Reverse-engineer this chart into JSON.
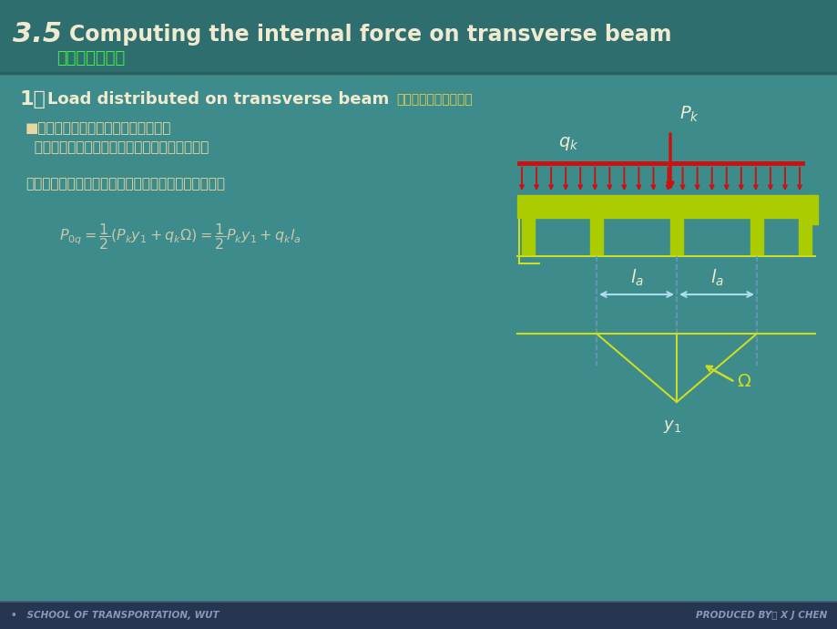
{
  "bg_color": "#3d8b8b",
  "header_line_color": "#2a6060",
  "footer_bg": "#263550",
  "footer_line_color": "#4a5a7a",
  "title_text": "3.5  Computing the internal force on transverse beam",
  "subtitle_text": "横隔梁内力计算",
  "section_title_en": "1．  Load distributed on transverse beam",
  "section_title_cn": "作用于横隔梁上的荷载",
  "bullet1": "■水橋跨方向确定横隔梁上的计算荷载",
  "bullet2": "  假定荷载在相邻横隔梁之间按杠杆原理法传递。",
  "body_text": "按一列汽车车道荷载轮重分布给中横梁的计算荷载为：",
  "footer_left": "•   SCHOOL OF TRANSPORTATION, WUT",
  "footer_right": "PRODUCED BY： X J CHEN",
  "title_color": "#f0ead0",
  "subtitle_color": "#44ee44",
  "section_en_color": "#f0ead0",
  "section_cn_color": "#e8d050",
  "body_color": "#e8d8a0",
  "formula_color": "#c8c8b0",
  "footer_color": "#8898b8",
  "beam_color": "#aacc00",
  "load_color": "#cc1111",
  "line_color": "#ccdd22",
  "arrow_color": "#ccdd22",
  "dashed_color": "#6699bb",
  "dim_arrow_color": "#aaddee"
}
